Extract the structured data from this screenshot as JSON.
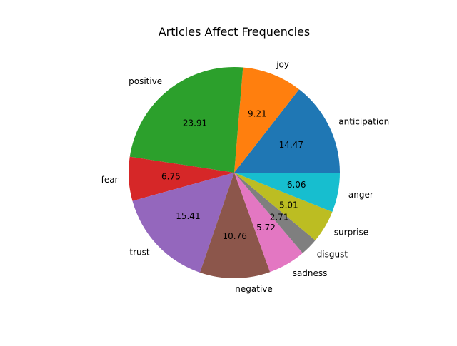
{
  "chart_data": {
    "type": "pie",
    "title": "Articles Affect Frequencies",
    "categories": [
      "anticipation",
      "joy",
      "positive",
      "fear",
      "trust",
      "negative",
      "sadness",
      "disgust",
      "surprise",
      "anger"
    ],
    "values": [
      14.47,
      9.21,
      23.91,
      6.75,
      15.41,
      10.76,
      5.72,
      2.71,
      5.01,
      6.06
    ],
    "value_labels": [
      "14.47",
      "9.21",
      "23.91",
      "6.75",
      "15.41",
      "10.76",
      "5.72",
      "2.71",
      "5.01",
      "6.06"
    ],
    "colors": [
      "#1f77b4",
      "#ff7f0e",
      "#2ca02c",
      "#d62728",
      "#9467bd",
      "#8c564b",
      "#e377c2",
      "#7f7f7f",
      "#bcbd22",
      "#17becf"
    ],
    "start_angle": 0,
    "direction": "counterclockwise"
  }
}
